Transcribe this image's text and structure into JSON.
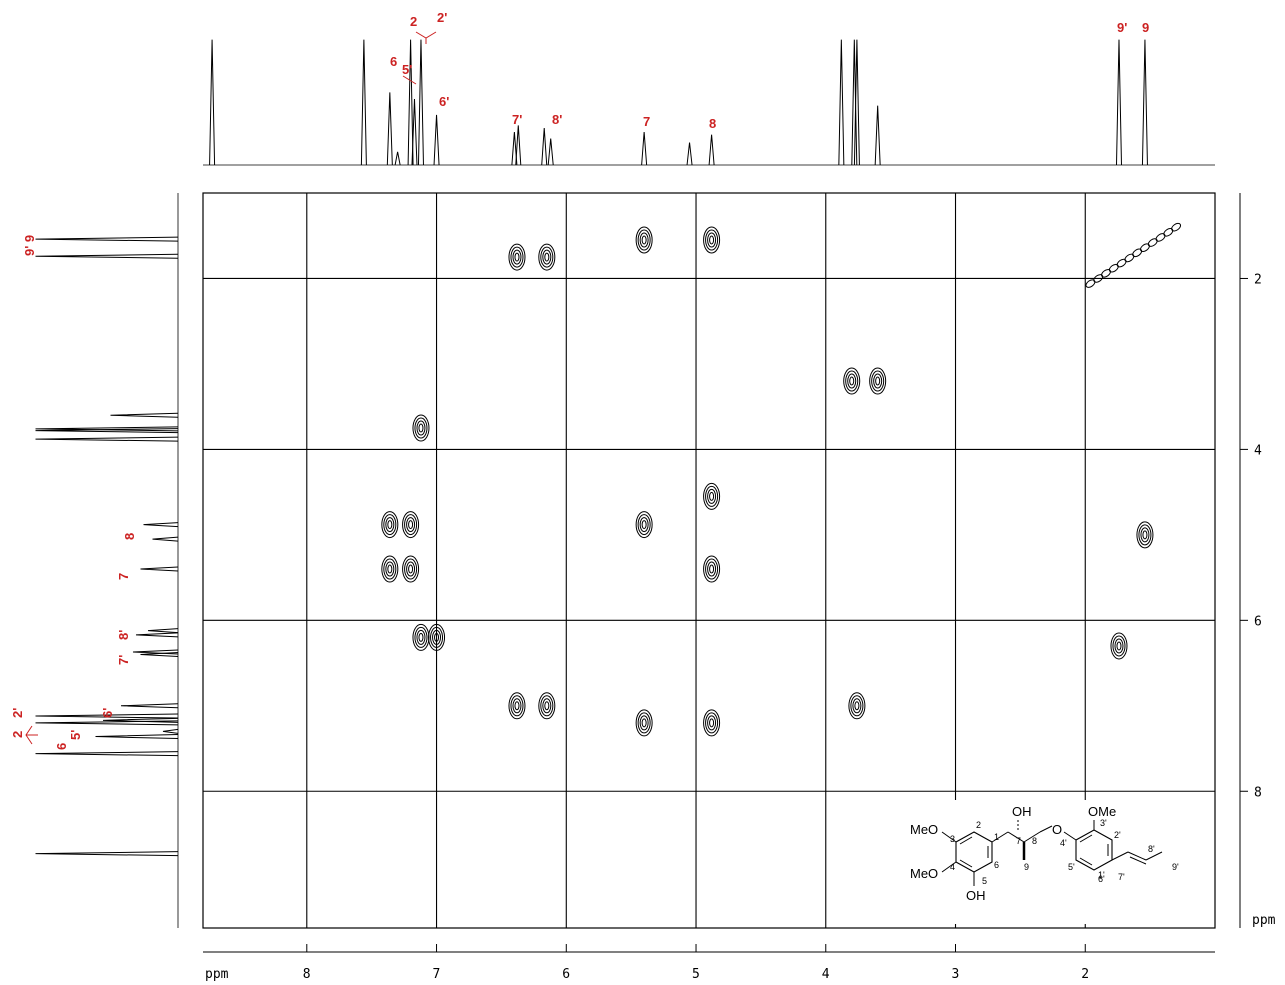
{
  "figure": {
    "axis_unit": "ppm",
    "x_ticks": [
      "8",
      "7",
      "6",
      "5",
      "4",
      "3",
      "2"
    ],
    "y_ticks": [
      "2",
      "4",
      "6",
      "8"
    ],
    "top_labels": [
      "2",
      "2'",
      "6",
      "5'",
      "6'",
      "7'",
      "8'",
      "7",
      "8",
      "9'",
      "9"
    ],
    "left_labels": [
      "9' 9",
      "8",
      "7",
      "8'",
      "7'",
      "6'",
      "2",
      "2'",
      "6",
      "5'"
    ],
    "peak_color": "#cc2222",
    "molecule": {
      "OH_top": "OH",
      "OMe_right": "OMe",
      "MeO_top": "MeO",
      "MeO_bottom": "MeO",
      "OH_bottom": "OH",
      "O_ether": "O",
      "numbers": [
        "2",
        "3",
        "1",
        "4",
        "5",
        "6",
        "7",
        "8",
        "9",
        "3'",
        "4'",
        "2'",
        "1'",
        "5'",
        "6'",
        "7'",
        "8'",
        "9'"
      ]
    }
  },
  "chart_data": {
    "type": "heatmap",
    "title": "",
    "xlabel": "ppm",
    "ylabel": "ppm",
    "xlim": [
      8.8,
      1.0
    ],
    "ylim": [
      1.0,
      9.6
    ],
    "x_reversed": true,
    "grid": true,
    "proton_1d_peaks_ppm": [
      {
        "label": "",
        "ppm": 8.73,
        "height": 0.95
      },
      {
        "label": "",
        "ppm": 7.56,
        "height": 0.95
      },
      {
        "label": "6",
        "ppm": 7.36,
        "height": 0.55
      },
      {
        "label": "",
        "ppm": 7.3,
        "height": 0.1
      },
      {
        "label": "2",
        "ppm": 7.2,
        "height": 0.95
      },
      {
        "label": "5'",
        "ppm": 7.17,
        "height": 0.5
      },
      {
        "label": "2'",
        "ppm": 7.12,
        "height": 0.95
      },
      {
        "label": "6'",
        "ppm": 7.0,
        "height": 0.38
      },
      {
        "label": "7'",
        "ppm": 6.4,
        "height": 0.25
      },
      {
        "label": "",
        "ppm": 6.37,
        "height": 0.3
      },
      {
        "label": "8'",
        "ppm": 6.17,
        "height": 0.28
      },
      {
        "label": "",
        "ppm": 6.12,
        "height": 0.2
      },
      {
        "label": "7",
        "ppm": 5.4,
        "height": 0.25
      },
      {
        "label": "",
        "ppm": 5.05,
        "height": 0.17
      },
      {
        "label": "8",
        "ppm": 4.88,
        "height": 0.23
      },
      {
        "label": "",
        "ppm": 3.88,
        "height": 0.95
      },
      {
        "label": "",
        "ppm": 3.78,
        "height": 0.95
      },
      {
        "label": "",
        "ppm": 3.76,
        "height": 0.95
      },
      {
        "label": "",
        "ppm": 3.6,
        "height": 0.45
      },
      {
        "label": "9'",
        "ppm": 1.74,
        "height": 0.95
      },
      {
        "label": "9",
        "ppm": 1.54,
        "height": 0.95
      }
    ],
    "cross_peaks_ppm": [
      {
        "x": 6.38,
        "y": 1.75
      },
      {
        "x": 6.15,
        "y": 1.75
      },
      {
        "x": 5.4,
        "y": 1.55
      },
      {
        "x": 4.88,
        "y": 1.55
      },
      {
        "x": 7.12,
        "y": 3.75
      },
      {
        "x": 7.36,
        "y": 4.88
      },
      {
        "x": 7.2,
        "y": 4.88
      },
      {
        "x": 7.36,
        "y": 5.4
      },
      {
        "x": 7.2,
        "y": 5.4
      },
      {
        "x": 5.4,
        "y": 4.88
      },
      {
        "x": 4.88,
        "y": 4.55
      },
      {
        "x": 4.88,
        "y": 5.4
      },
      {
        "x": 7.12,
        "y": 6.2
      },
      {
        "x": 7.0,
        "y": 6.2
      },
      {
        "x": 6.38,
        "y": 7.0
      },
      {
        "x": 6.15,
        "y": 7.0
      },
      {
        "x": 5.4,
        "y": 7.2
      },
      {
        "x": 4.88,
        "y": 7.2
      },
      {
        "x": 3.76,
        "y": 7.0
      },
      {
        "x": 1.74,
        "y": 6.3
      },
      {
        "x": 1.54,
        "y": 5.0
      },
      {
        "x": 3.8,
        "y": 3.2
      },
      {
        "x": 3.6,
        "y": 3.2
      }
    ]
  }
}
